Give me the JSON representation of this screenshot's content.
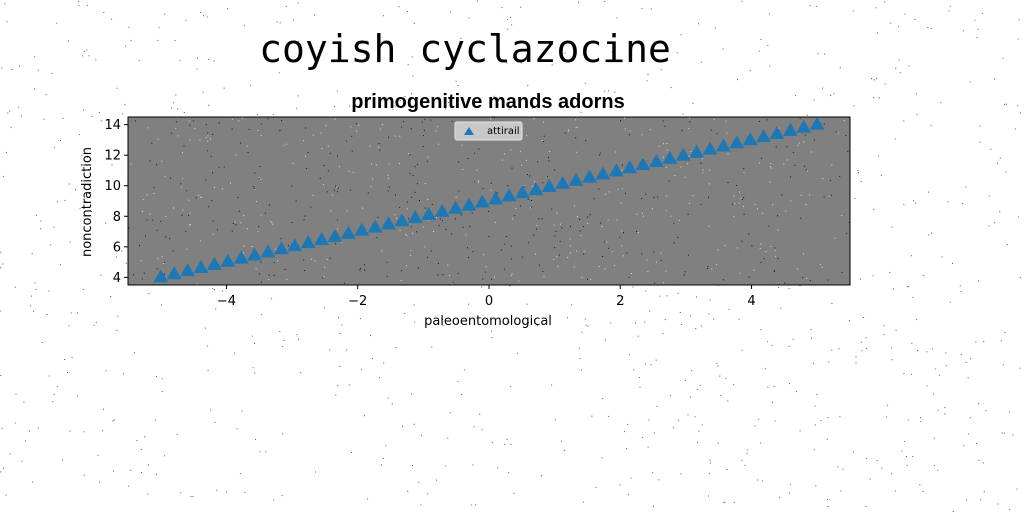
{
  "suptitle": "coyish cyclazocine",
  "chart_data": {
    "type": "scatter",
    "title": "primogenitive mands adorns",
    "xlabel": "paleoentomological",
    "ylabel": "noncontradiction",
    "xlim": [
      -5.5,
      5.5
    ],
    "ylim": [
      3.5,
      14.5
    ],
    "xticks": [
      -4,
      -2,
      0,
      2,
      4
    ],
    "xtick_labels": [
      "−4",
      "−2",
      "0",
      "2",
      "4"
    ],
    "yticks": [
      4,
      6,
      8,
      10,
      12,
      14
    ],
    "ytick_labels": [
      "4",
      "6",
      "8",
      "10",
      "12",
      "14"
    ],
    "grid": false,
    "legend_position": "upper center",
    "plot_background": "#808080",
    "series": [
      {
        "name": "attirail",
        "marker": "triangle",
        "color": "#1f77b4",
        "x": [
          -5.0,
          -4.7959,
          -4.5918,
          -4.3878,
          -4.1837,
          -3.9796,
          -3.7755,
          -3.5714,
          -3.3673,
          -3.1633,
          -2.9592,
          -2.7551,
          -2.551,
          -2.3469,
          -2.1429,
          -1.9388,
          -1.7347,
          -1.5306,
          -1.3265,
          -1.1224,
          -0.9184,
          -0.7143,
          -0.5102,
          -0.3061,
          -0.102,
          0.102,
          0.3061,
          0.5102,
          0.7143,
          0.9184,
          1.1224,
          1.3265,
          1.5306,
          1.7347,
          1.9388,
          2.1429,
          2.3469,
          2.551,
          2.7551,
          2.9592,
          3.1633,
          3.3673,
          3.5714,
          3.7755,
          3.9796,
          4.1837,
          4.3878,
          4.5918,
          4.7959,
          5.0
        ],
        "y": [
          4.0,
          4.204,
          4.408,
          4.612,
          4.816,
          5.02,
          5.224,
          5.429,
          5.633,
          5.837,
          6.041,
          6.245,
          6.449,
          6.653,
          6.857,
          7.061,
          7.265,
          7.469,
          7.673,
          7.878,
          8.082,
          8.286,
          8.49,
          8.694,
          8.898,
          9.102,
          9.306,
          9.51,
          9.714,
          9.918,
          10.122,
          10.327,
          10.531,
          10.735,
          10.939,
          11.143,
          11.347,
          11.551,
          11.755,
          11.959,
          12.163,
          12.367,
          12.571,
          12.776,
          12.98,
          13.184,
          13.388,
          13.592,
          13.796,
          14.0
        ]
      }
    ]
  }
}
